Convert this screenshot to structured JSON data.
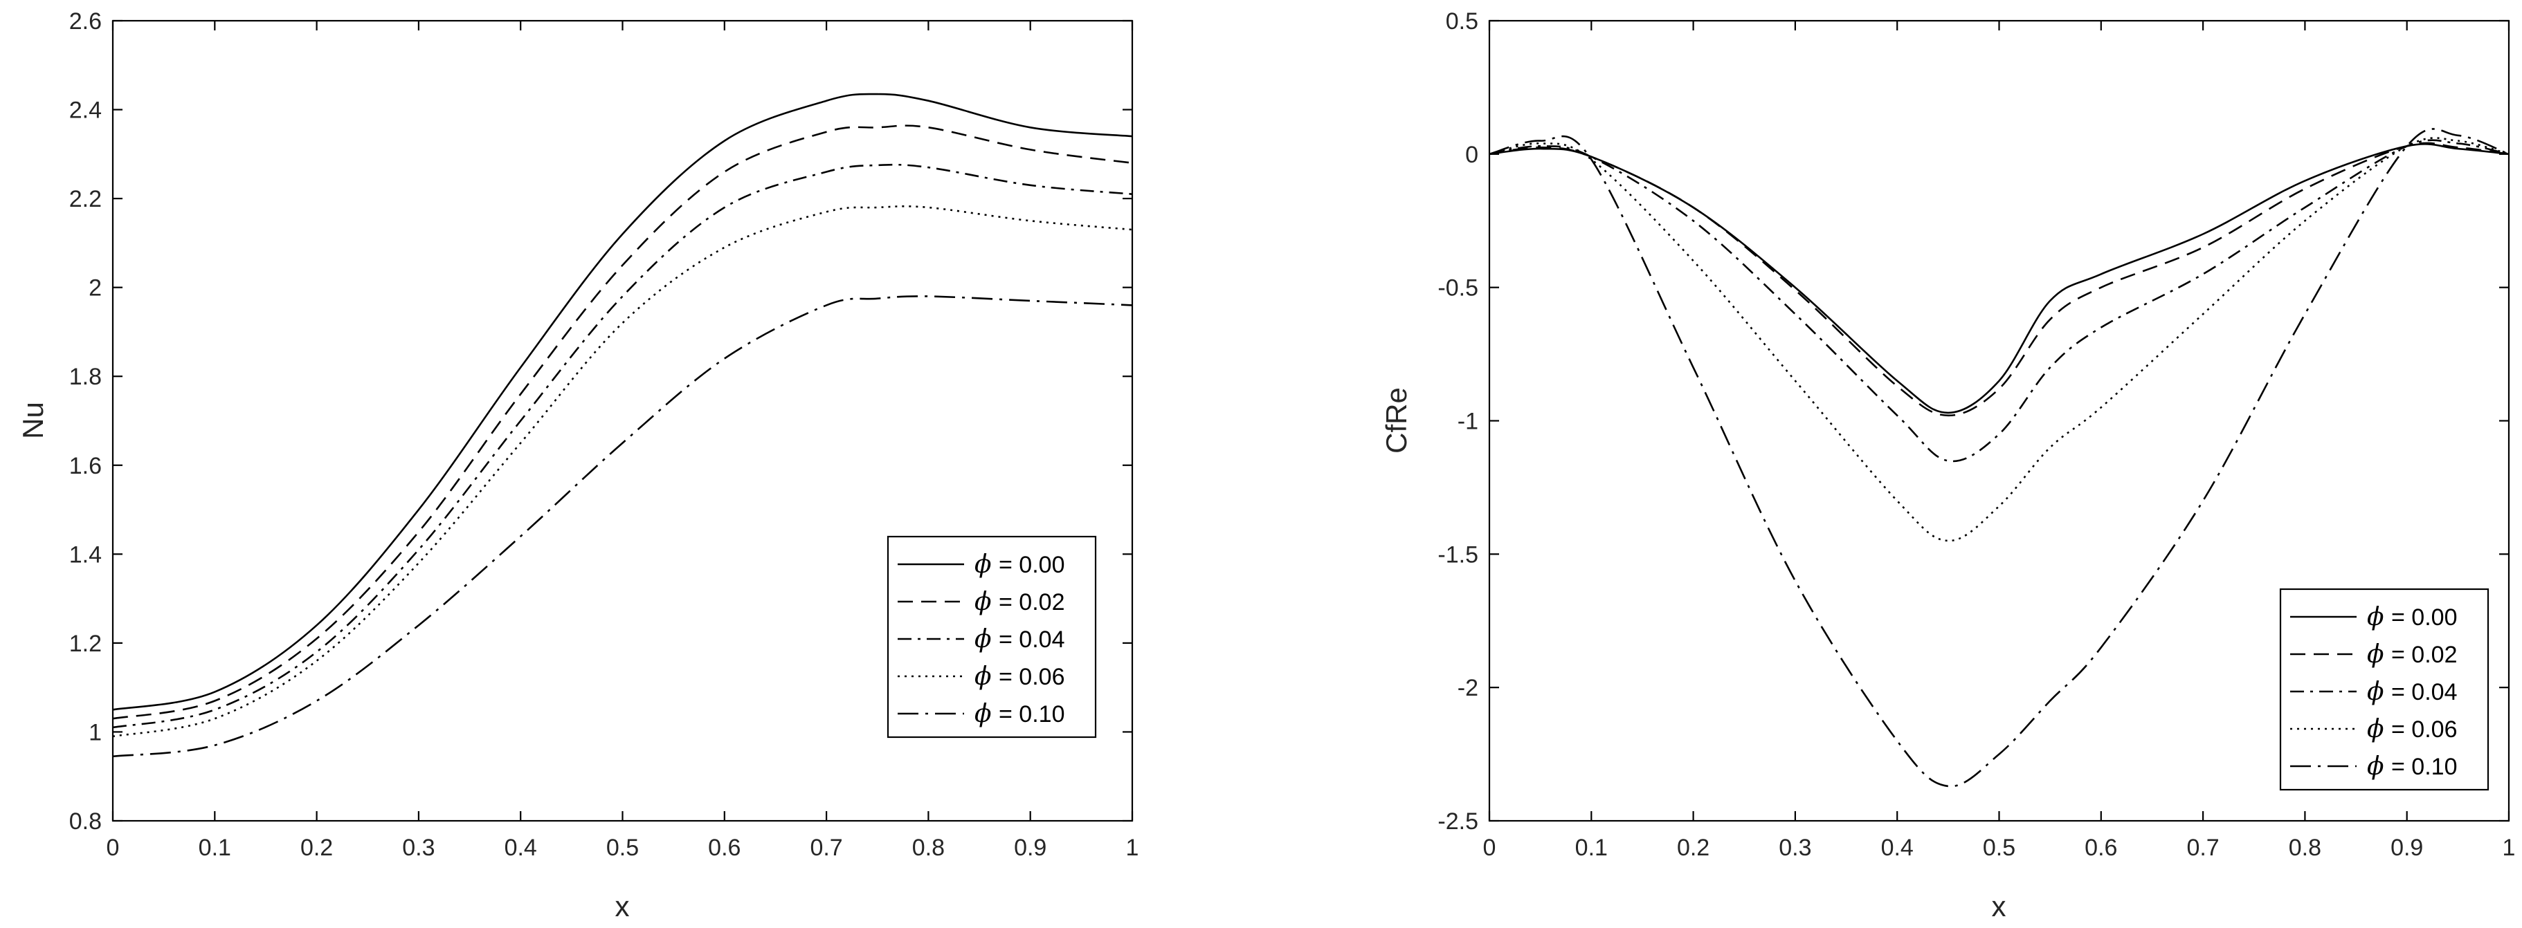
{
  "chart_data": [
    {
      "type": "line",
      "xlabel": "x",
      "ylabel": "Nu",
      "xlim": [
        0,
        1
      ],
      "ylim": [
        0.8,
        2.6
      ],
      "xticks": [
        "0",
        "0.1",
        "0.2",
        "0.3",
        "0.4",
        "0.5",
        "0.6",
        "0.7",
        "0.8",
        "0.9",
        "1"
      ],
      "yticks": [
        "0.8",
        "1",
        "1.2",
        "1.4",
        "1.6",
        "1.8",
        "2",
        "2.2",
        "2.4",
        "2.6"
      ],
      "legend_position": "bottom-right",
      "x": [
        0,
        0.1,
        0.2,
        0.3,
        0.4,
        0.5,
        0.6,
        0.7,
        0.75,
        0.8,
        0.9,
        1.0
      ],
      "series": [
        {
          "name": "ϕ = 0.00",
          "symbol": "ϕ",
          "label": "= 0.00",
          "dash": "solid",
          "values": [
            1.05,
            1.09,
            1.24,
            1.5,
            1.82,
            2.12,
            2.33,
            2.42,
            2.435,
            2.42,
            2.36,
            2.34
          ]
        },
        {
          "name": "ϕ = 0.02",
          "symbol": "ϕ",
          "label": "= 0.02",
          "dash": "dashed",
          "values": [
            1.03,
            1.07,
            1.21,
            1.45,
            1.76,
            2.05,
            2.26,
            2.35,
            2.36,
            2.36,
            2.31,
            2.28
          ]
        },
        {
          "name": "ϕ = 0.04",
          "symbol": "ϕ",
          "label": "= 0.04",
          "dash": "dashdot",
          "values": [
            1.01,
            1.05,
            1.18,
            1.41,
            1.7,
            1.98,
            2.18,
            2.26,
            2.275,
            2.27,
            2.23,
            2.21
          ]
        },
        {
          "name": "ϕ = 0.06",
          "symbol": "ϕ",
          "label": "= 0.06",
          "dash": "dotted",
          "values": [
            0.99,
            1.03,
            1.16,
            1.38,
            1.65,
            1.92,
            2.09,
            2.17,
            2.18,
            2.18,
            2.15,
            2.13
          ]
        },
        {
          "name": "ϕ = 0.10",
          "symbol": "ϕ",
          "label": "= 0.10",
          "dash": "longdashdot",
          "values": [
            0.945,
            0.97,
            1.07,
            1.24,
            1.44,
            1.65,
            1.84,
            1.96,
            1.975,
            1.98,
            1.97,
            1.96
          ]
        }
      ]
    },
    {
      "type": "line",
      "xlabel": "x",
      "ylabel": "CfRe",
      "xlim": [
        0,
        1
      ],
      "ylim": [
        -2.5,
        0.5
      ],
      "xticks": [
        "0",
        "0.1",
        "0.2",
        "0.3",
        "0.4",
        "0.5",
        "0.6",
        "0.7",
        "0.8",
        "0.9",
        "1"
      ],
      "yticks": [
        "-2.5",
        "-2",
        "-1.5",
        "-1",
        "-0.5",
        "0",
        "0.5"
      ],
      "legend_position": "bottom-right",
      "x": [
        0,
        0.05,
        0.1,
        0.2,
        0.3,
        0.4,
        0.45,
        0.5,
        0.55,
        0.6,
        0.7,
        0.8,
        0.9,
        0.95,
        1.0
      ],
      "series": [
        {
          "name": "ϕ = 0.00",
          "symbol": "ϕ",
          "label": "= 0.00",
          "dash": "solid",
          "values": [
            0,
            0.02,
            -0.01,
            -0.2,
            -0.5,
            -0.85,
            -0.97,
            -0.85,
            -0.55,
            -0.45,
            -0.3,
            -0.1,
            0.03,
            0.02,
            0
          ]
        },
        {
          "name": "ϕ = 0.02",
          "symbol": "ϕ",
          "label": "= 0.02",
          "dash": "dashed",
          "values": [
            0,
            0.025,
            -0.01,
            -0.2,
            -0.51,
            -0.87,
            -0.98,
            -0.88,
            -0.62,
            -0.5,
            -0.35,
            -0.13,
            0.03,
            0.025,
            0
          ]
        },
        {
          "name": "ϕ = 0.04",
          "symbol": "ϕ",
          "label": "= 0.04",
          "dash": "dashdot",
          "values": [
            0,
            0.03,
            -0.01,
            -0.25,
            -0.6,
            -0.98,
            -1.15,
            -1.05,
            -0.8,
            -0.65,
            -0.45,
            -0.2,
            0.03,
            0.04,
            0
          ]
        },
        {
          "name": "ϕ = 0.06",
          "symbol": "ϕ",
          "label": "= 0.06",
          "dash": "dotted",
          "values": [
            0,
            0.04,
            -0.02,
            -0.4,
            -0.85,
            -1.3,
            -1.45,
            -1.32,
            -1.1,
            -0.95,
            -0.6,
            -0.25,
            0.03,
            0.05,
            0
          ]
        },
        {
          "name": "ϕ = 0.10",
          "symbol": "ϕ",
          "label": "= 0.10",
          "dash": "longdashdot",
          "values": [
            0,
            0.05,
            -0.02,
            -0.8,
            -1.6,
            -2.2,
            -2.37,
            -2.25,
            -2.05,
            -1.85,
            -1.3,
            -0.6,
            0.03,
            0.07,
            0
          ]
        }
      ]
    }
  ]
}
